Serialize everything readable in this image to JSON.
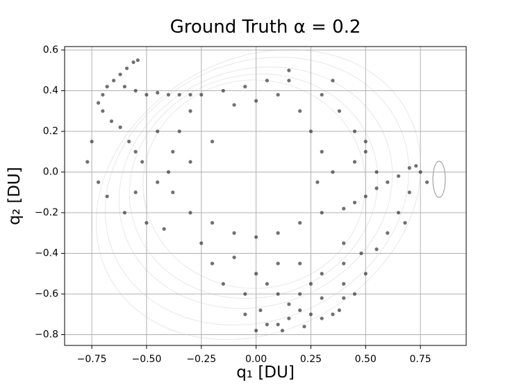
{
  "chart_data": {
    "type": "scatter",
    "title": "Ground Truth α = 0.2",
    "xlabel": "q₁ [DU]",
    "ylabel": "q₂ [DU]",
    "color": "#333333",
    "grid": true,
    "xlim": [
      -0.874,
      0.959
    ],
    "ylim": [
      -0.853,
      0.617
    ],
    "xticks": [
      {
        "value": -0.75,
        "label": "−0.75"
      },
      {
        "value": -0.5,
        "label": "−0.50"
      },
      {
        "value": -0.25,
        "label": "−0.25"
      },
      {
        "value": 0,
        "label": "0.00"
      },
      0.25,
      {
        "value": 0.5,
        "label": "0.50"
      },
      0.75
    ],
    "yticks": [
      0.6,
      0.4,
      0.2,
      {
        "value": 0,
        "label": "0.0"
      },
      {
        "value": -0.2,
        "label": "−0.2"
      },
      {
        "value": -0.4,
        "label": "−0.4"
      },
      {
        "value": -0.6,
        "label": "−0.6"
      },
      {
        "value": -0.8,
        "label": "−0.8"
      }
    ],
    "x": [
      -0.72,
      -0.7,
      -0.68,
      -0.65,
      -0.62,
      -0.59,
      -0.56,
      -0.54,
      -0.6,
      -0.55,
      -0.5,
      -0.45,
      -0.4,
      -0.35,
      -0.3,
      -0.25,
      -0.7,
      -0.66,
      -0.62,
      -0.58,
      -0.55,
      -0.52,
      -0.75,
      -0.77,
      -0.72,
      -0.68,
      -0.6,
      -0.5,
      -0.42,
      -0.15,
      -0.05,
      0.05,
      0.15,
      0.1,
      0,
      -0.1,
      0.2,
      0.25,
      0.3,
      0.35,
      0.28,
      -0.3,
      -0.35,
      -0.38,
      -0.4,
      -0.38,
      -0.3,
      -0.2,
      -0.1,
      0,
      0.1,
      0.2,
      0.3,
      0.4,
      0.45,
      0.5,
      0.55,
      0.6,
      0.65,
      0.7,
      0.73,
      0.75,
      0.7,
      0.65,
      0.6,
      0.55,
      0.5,
      0.55,
      0.45,
      0.78,
      0.68,
      0.4,
      0.4,
      0.4,
      0.4,
      0.38,
      0.35,
      0.3,
      0.25,
      0.2,
      0.15,
      0.1,
      0.05,
      0,
      -0.05,
      -0.05,
      0,
      0.05,
      0.1,
      0.15,
      0.2,
      0.25,
      0.3,
      0.2,
      0.1,
      0.3,
      0.45,
      0.5,
      0.48,
      -0.15,
      -0.2,
      -0.25,
      -0.1,
      0.02,
      0.12,
      0.22,
      -0.45,
      -0.45,
      -0.3,
      -0.55,
      0.35,
      0.3,
      0.38,
      0.45,
      0.5,
      -0.2,
      0.15
    ],
    "values": [
      0.34,
      0.38,
      0.42,
      0.45,
      0.48,
      0.51,
      0.54,
      0.55,
      0.42,
      0.4,
      0.38,
      0.39,
      0.38,
      0.38,
      0.38,
      0.38,
      0.3,
      0.25,
      0.22,
      0.15,
      0.1,
      0.05,
      0.15,
      0.05,
      -0.05,
      -0.12,
      -0.2,
      -0.25,
      -0.28,
      0.4,
      0.42,
      0.45,
      0.45,
      0.38,
      0.35,
      0.33,
      0.3,
      0.2,
      0.1,
      0,
      -0.05,
      0.3,
      0.2,
      0.1,
      0,
      -0.1,
      -0.2,
      -0.25,
      -0.3,
      -0.32,
      -0.3,
      -0.25,
      -0.2,
      -0.18,
      -0.15,
      -0.12,
      -0.08,
      -0.05,
      -0.02,
      0.02,
      0.03,
      0,
      -0.1,
      -0.2,
      -0.3,
      -0.38,
      0.1,
      0,
      0.05,
      -0.05,
      -0.25,
      -0.35,
      -0.45,
      -0.55,
      -0.62,
      -0.68,
      -0.7,
      -0.72,
      -0.7,
      -0.68,
      -0.65,
      -0.6,
      -0.55,
      -0.5,
      -0.6,
      -0.7,
      -0.78,
      -0.75,
      -0.75,
      -0.72,
      -0.6,
      -0.55,
      -0.5,
      -0.45,
      -0.45,
      -0.62,
      -0.6,
      -0.5,
      -0.4,
      -0.55,
      -0.45,
      -0.35,
      -0.42,
      -0.68,
      -0.78,
      -0.76,
      0.2,
      -0.05,
      0.05,
      -0.1,
      0.45,
      0.38,
      0.3,
      0.2,
      0.15,
      0.15,
      0.5
    ]
  }
}
